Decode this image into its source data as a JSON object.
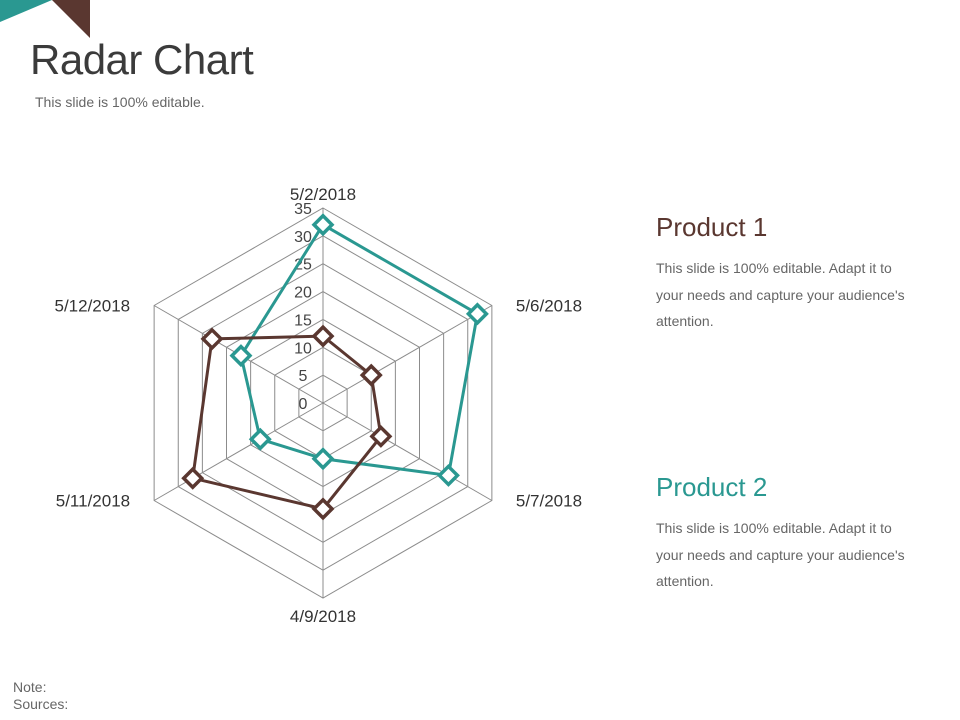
{
  "slide": {
    "title": "Radar Chart",
    "subtitle": "This slide is 100% editable."
  },
  "colors": {
    "accent_teal": "#2a9891",
    "accent_brown": "#5a3730",
    "grid": "#8c8c8c"
  },
  "legend": [
    {
      "name": "Product 1",
      "color": "#5a3730",
      "text": "This slide is 100% editable. Adapt it to your needs and capture your audience's attention."
    },
    {
      "name": "Product 2",
      "color": "#2a9891",
      "text": "This slide is 100% editable. Adapt it to your needs and capture your audience's attention."
    }
  ],
  "chart_data": {
    "type": "radar",
    "categories": [
      "5/2/2018",
      "5/6/2018",
      "5/7/2018",
      "4/9/2018",
      "5/11/2018",
      "5/12/2018"
    ],
    "rlim": [
      0,
      35
    ],
    "ticks": [
      0,
      5,
      10,
      15,
      20,
      25,
      30,
      35
    ],
    "series": [
      {
        "color": "#2a9891",
        "values": [
          32,
          32,
          26,
          10,
          13,
          17
        ]
      },
      {
        "color": "#5a3730",
        "values": [
          12,
          10,
          12,
          19,
          27,
          23
        ]
      }
    ]
  },
  "footer": {
    "note": "Note:",
    "sources": "Sources:"
  }
}
